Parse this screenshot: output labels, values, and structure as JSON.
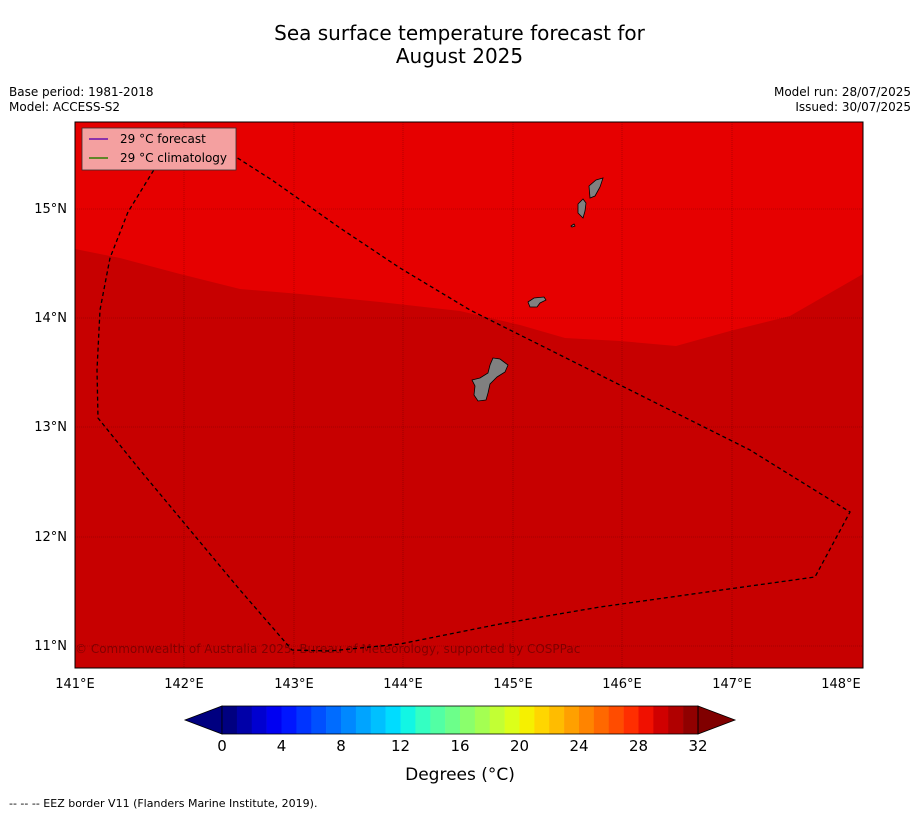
{
  "title_line1": "Sea surface temperature forecast for",
  "title_line2": "August 2025",
  "meta_left": {
    "base_period": "Base period: 1981-2018",
    "model": "Model: ACCESS-S2"
  },
  "meta_right": {
    "model_run": "Model run: 28/07/2025",
    "issued": "Issued: 30/07/2025"
  },
  "legend": {
    "forecast": "29 °C  forecast",
    "climatology": "29 °C  climatology",
    "forecast_color": "#6a0dad",
    "climatology_color": "#2e7d00"
  },
  "axes": {
    "lon_ticks": [
      "141°E",
      "142°E",
      "143°E",
      "144°E",
      "145°E",
      "146°E",
      "147°E",
      "148°E"
    ],
    "lat_ticks": [
      "15°N",
      "14°N",
      "13°N",
      "12°N",
      "11°N"
    ]
  },
  "copyright": "© Commonwealth of Australia 2025, Bureau of Meteorology, supported by COSPPac",
  "colorbar": {
    "ticks": [
      "0",
      "4",
      "8",
      "12",
      "16",
      "20",
      "24",
      "28",
      "32"
    ],
    "label": "Degrees (°C)",
    "colors": [
      "#000080",
      "#0000a8",
      "#0000d0",
      "#0000f2",
      "#0016ff",
      "#0034ff",
      "#0050ff",
      "#006cff",
      "#0088ff",
      "#00a4ff",
      "#00c0ff",
      "#00dcff",
      "#12f6e4",
      "#34ffc2",
      "#52ffa4",
      "#6cff8a",
      "#8aff6c",
      "#a4ff52",
      "#c2ff34",
      "#dcff1a",
      "#f6f000",
      "#ffd600",
      "#ffbc00",
      "#ffa000",
      "#ff8400",
      "#ff6800",
      "#ff4c00",
      "#ff2e00",
      "#f01000",
      "#d00000",
      "#b00000",
      "#900000"
    ],
    "under_color": "#000080",
    "over_color": "#800000"
  },
  "map_colors": {
    "north_zone": "#e60000",
    "south_zone": "#c70000",
    "land": "#808080"
  },
  "footnote": "--  --  -- EEZ border V11 (Flanders Marine Institute, 2019)."
}
